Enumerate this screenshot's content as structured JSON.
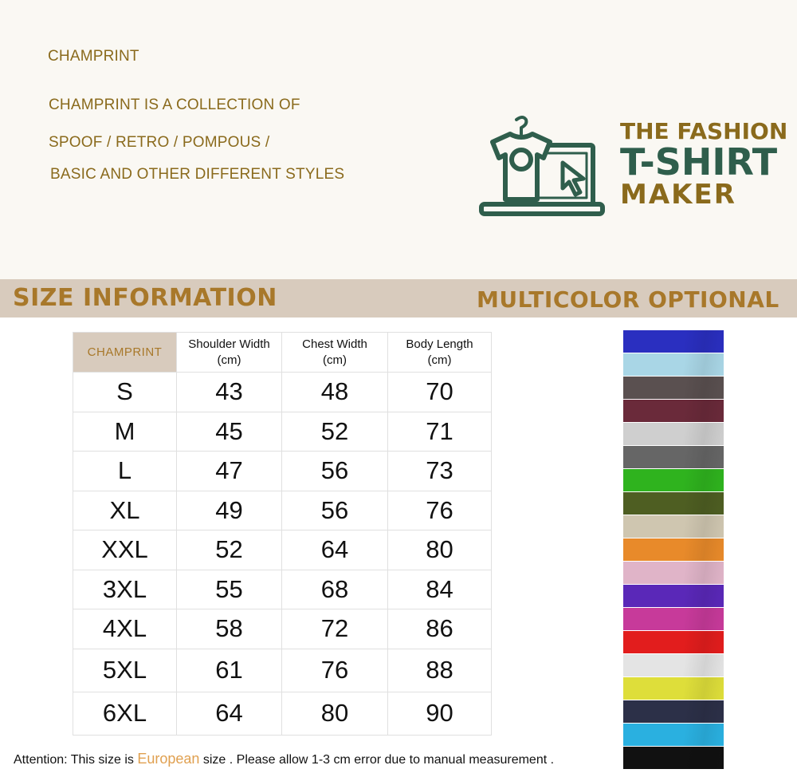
{
  "intro": {
    "brand": "CHAMPRINT",
    "lines": [
      "CHAMPRINT IS A COLLECTION OF",
      "SPOOF / RETRO / POMPOUS /",
      "BASIC AND OTHER DIFFERENT STYLES"
    ]
  },
  "logo": {
    "line1": "THE FASHION",
    "line2": "T-SHIRT",
    "line3": "MAKER",
    "icon": "tshirt-laptop-cursor-icon",
    "colors": {
      "green": "#2f5e4c",
      "gold": "#8a6a1c"
    }
  },
  "band": {
    "left": "SIZE  INFORMATION",
    "right": "MULTICOLOR OPTIONAL"
  },
  "table": {
    "brand": "CHAMPRINT",
    "headers": [
      {
        "name": "Shoulder  Width",
        "unit": "(cm)"
      },
      {
        "name": "Chest Width",
        "unit": "(cm)"
      },
      {
        "name": "Body Length",
        "unit": "(cm)"
      }
    ],
    "rows": [
      [
        "S",
        "43",
        "48",
        "70"
      ],
      [
        "M",
        "45",
        "52",
        "71"
      ],
      [
        "L",
        "47",
        "56",
        "73"
      ],
      [
        "XL",
        "49",
        "56",
        "76"
      ],
      [
        "XXL",
        "52",
        "64",
        "80"
      ],
      [
        "3XL",
        "55",
        "68",
        "84"
      ],
      [
        "4XL",
        "58",
        "72",
        "86"
      ],
      [
        "5XL",
        "61",
        "76",
        "88"
      ],
      [
        "6XL",
        "64",
        "80",
        "90"
      ]
    ]
  },
  "swatches": [
    "#2a2fc0",
    "#a9d6e6",
    "#5a5050",
    "#6a2a3a",
    "#cfcfcf",
    "#666666",
    "#2fb31e",
    "#4e5e22",
    "#cfc6b0",
    "#e88a2a",
    "#e0b4c8",
    "#5a28b8",
    "#c73a9a",
    "#e21d1d",
    "#e4e4e4",
    "#dede3a",
    "#2c3048",
    "#2ab0e0",
    "#111111"
  ],
  "note": {
    "before": "Attention: This size is ",
    "highlight": "European",
    "after": " size . Please allow 1-3 cm error due to manual measurement ."
  }
}
